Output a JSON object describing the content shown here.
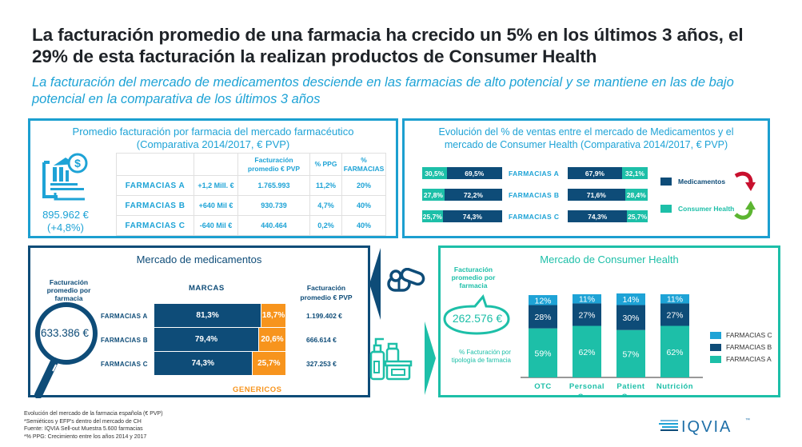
{
  "header": {
    "title": "La facturación promedio de una farmacia ha crecido un 5% en los últimos 3 años, el 29% de esta facturación la realizan productos de Consumer Health",
    "subtitle": "La facturación del mercado de medicamentos desciende en las farmacias de alto potencial y se mantiene en las de bajo potencial en la comparativa de los últimos 3 años"
  },
  "colors": {
    "light_blue": "#1ea3d6",
    "dark_blue": "#0e4c78",
    "teal": "#1dbfa8",
    "orange": "#f7941d",
    "red_arrow": "#c8102e",
    "green_arrow": "#5cb531"
  },
  "panel_promedio": {
    "title_line1": "Promedio facturación por farmacia del mercado farmacéutico",
    "title_line2": "(Comparativa 2014/2017, € PVP)",
    "icon": "bank-dollar-icon",
    "total_value": "895.962 €",
    "total_growth": "(+4,8%)",
    "table": {
      "headers": [
        "",
        "",
        "Facturación promedio € PVP",
        "% PPG",
        "% FARMACIAS"
      ],
      "rows": [
        {
          "label": "FARMACIAS A",
          "delta": "+1,2 Mill. €",
          "facturacion": "1.765.993",
          "ppg": "11,2%",
          "farmacias": "20%"
        },
        {
          "label": "FARMACIAS B",
          "delta": "+640 Mil €",
          "facturacion": "930.739",
          "ppg": "4,7%",
          "farmacias": "40%"
        },
        {
          "label": "FARMACIAS C",
          "delta": "-640 Mil €",
          "facturacion": "440.464",
          "ppg": "0,2%",
          "farmacias": "40%"
        }
      ]
    }
  },
  "panel_evolucion": {
    "title_line1": "Evolución del % de ventas entre el mercado de Medicamentos y el",
    "title_line2": "mercado de Consumer Health (Comparativa 2014/2017, € PVP)",
    "rows": [
      {
        "label": "FARMACIAS A",
        "y2014": {
          "consumer_health": 30.5,
          "medicamentos": 69.5,
          "ch_text": "30,5%",
          "med_text": "69,5%"
        },
        "y2017": {
          "medicamentos": 67.9,
          "consumer_health": 32.1,
          "med_text": "67,9%",
          "ch_text": "32,1%"
        }
      },
      {
        "label": "FARMACIAS B",
        "y2014": {
          "consumer_health": 27.8,
          "medicamentos": 72.2,
          "ch_text": "27,8%",
          "med_text": "72,2%"
        },
        "y2017": {
          "medicamentos": 71.6,
          "consumer_health": 28.4,
          "med_text": "71,6%",
          "ch_text": "28,4%"
        }
      },
      {
        "label": "FARMACIAS C",
        "y2014": {
          "consumer_health": 25.7,
          "medicamentos": 74.3,
          "ch_text": "25,7%",
          "med_text": "74,3%"
        },
        "y2017": {
          "medicamentos": 74.3,
          "consumer_health": 25.7,
          "med_text": "74,3%",
          "ch_text": "25,7%"
        }
      }
    ],
    "legend": [
      {
        "label": "Medicamentos",
        "trend_icon": "curved-arrow-down-icon"
      },
      {
        "label": "Consumer Health",
        "trend_icon": "curved-arrow-up-icon"
      }
    ]
  },
  "panel_medicamentos": {
    "title": "Mercado de medicamentos",
    "lens_label": "Facturación promedio por farmacia",
    "lens_value": "633.386 €",
    "marcas_header": "MARCAS",
    "fact_header": "Facturación promedio € PVP",
    "genericos_label": "GENERICOS",
    "rows": [
      {
        "label": "FARMACIAS A",
        "marcas": 81.3,
        "genericos": 18.7,
        "marcas_text": "81,3%",
        "genericos_text": "18,7%",
        "facturacion": "1.199.402 €"
      },
      {
        "label": "FARMACIAS B",
        "marcas": 79.4,
        "genericos": 20.6,
        "marcas_text": "79,4%",
        "genericos_text": "20,6%",
        "facturacion": "666.614 €"
      },
      {
        "label": "FARMACIAS C",
        "marcas": 74.3,
        "genericos": 25.7,
        "marcas_text": "74,3%",
        "genericos_text": "25,7%",
        "facturacion": "327.253 €"
      }
    ]
  },
  "panel_consumer_health": {
    "title": "Mercado de Consumer Health",
    "bubble_label": "Facturación promedio por farmacia",
    "bubble_value": "262.576 €",
    "sub_label": "% Facturación por tipología de farmacia",
    "legend": [
      "FARMACIAS C",
      "FARMACIAS B",
      "FARMACIAS A"
    ]
  },
  "chart_data": {
    "type": "bar",
    "stacked": true,
    "title": "Mercado de Consumer Health",
    "xlabel": "",
    "ylabel": "% Facturación por tipología de farmacia",
    "categories": [
      "OTC",
      "Personal Care",
      "Patient Care",
      "Nutrición"
    ],
    "series": [
      {
        "name": "FARMACIAS A",
        "values": [
          59,
          62,
          57,
          62
        ],
        "color": "#1dbfa8"
      },
      {
        "name": "FARMACIAS B",
        "values": [
          28,
          27,
          30,
          27
        ],
        "color": "#0e4c78"
      },
      {
        "name": "FARMACIAS C",
        "values": [
          12,
          11,
          14,
          11
        ],
        "color": "#1ea3d6"
      }
    ],
    "ylim": [
      0,
      100
    ],
    "grid": false,
    "legend_position": "right"
  },
  "footer": {
    "lines": [
      "Evolución del mercado de la farmacia española (€ PVP)",
      "*Semiéticos y EFP's dentro del mercado de CH",
      "Fuente: IQVIA Sell-out Muestra 5.600 farmacias",
      "*% PPG: Crecimiento entre los años 2014 y 2017"
    ],
    "logo_text": "IQVIA",
    "logo_tm": "™"
  }
}
